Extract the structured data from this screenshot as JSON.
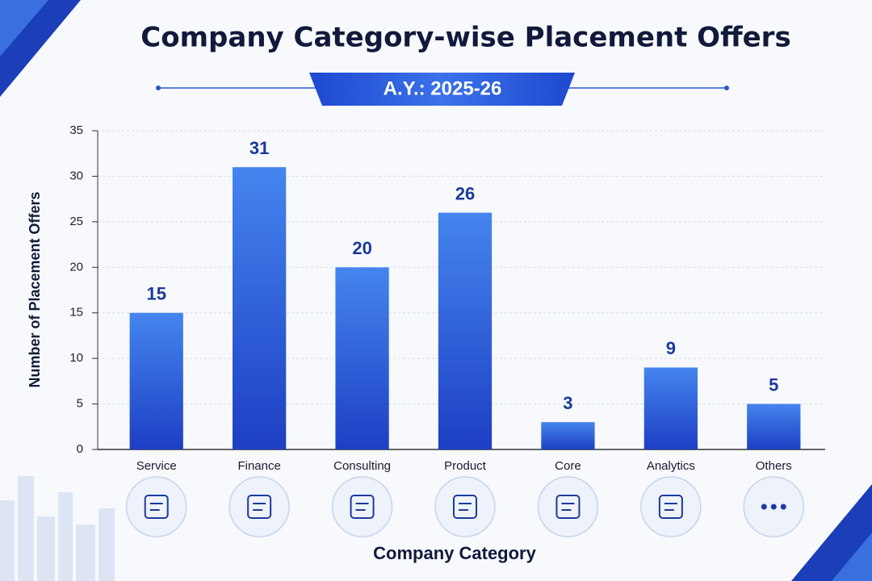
{
  "chart_data": {
    "type": "bar",
    "title": "Company Category-wise Placement Offers",
    "subtitle": "A.Y.: 2025-26",
    "y_label": "Number of Placement Offers",
    "x_label": "Company Category",
    "categories": [
      "Service",
      "Finance",
      "Consulting",
      "Product",
      "Core",
      "Analytics",
      "Others"
    ],
    "values": [
      15,
      31,
      20,
      26,
      3,
      9,
      5
    ],
    "color": "#2b5ad8",
    "ylim": [
      0,
      35
    ],
    "yticks": [
      0,
      5,
      10,
      15,
      20,
      25,
      30,
      35
    ],
    "grid": true
  }
}
